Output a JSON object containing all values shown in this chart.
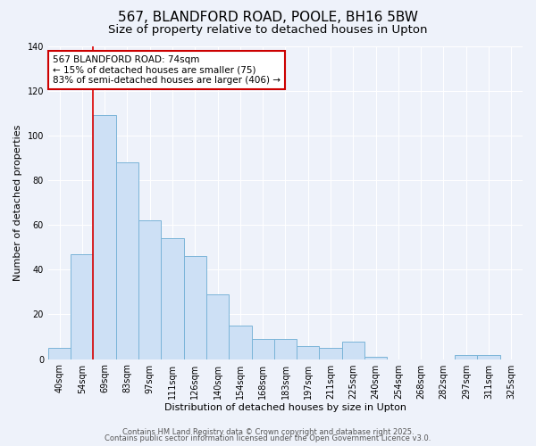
{
  "title": "567, BLANDFORD ROAD, POOLE, BH16 5BW",
  "subtitle": "Size of property relative to detached houses in Upton",
  "xlabel": "Distribution of detached houses by size in Upton",
  "ylabel": "Number of detached properties",
  "bar_labels": [
    "40sqm",
    "54sqm",
    "69sqm",
    "83sqm",
    "97sqm",
    "111sqm",
    "126sqm",
    "140sqm",
    "154sqm",
    "168sqm",
    "183sqm",
    "197sqm",
    "211sqm",
    "225sqm",
    "240sqm",
    "254sqm",
    "268sqm",
    "282sqm",
    "297sqm",
    "311sqm",
    "325sqm"
  ],
  "bar_values": [
    5,
    47,
    109,
    88,
    62,
    54,
    46,
    29,
    15,
    9,
    9,
    6,
    5,
    8,
    1,
    0,
    0,
    0,
    2,
    2,
    0
  ],
  "bar_color": "#cde0f5",
  "bar_edgecolor": "#7ab4d8",
  "vline_color": "#dd0000",
  "annotation_text": "567 BLANDFORD ROAD: 74sqm\n← 15% of detached houses are smaller (75)\n83% of semi-detached houses are larger (406) →",
  "annotation_box_color": "#ffffff",
  "annotation_box_edgecolor": "#cc0000",
  "ylim": [
    0,
    140
  ],
  "yticks": [
    0,
    20,
    40,
    60,
    80,
    100,
    120,
    140
  ],
  "footer_line1": "Contains HM Land Registry data © Crown copyright and database right 2025.",
  "footer_line2": "Contains public sector information licensed under the Open Government Licence v3.0.",
  "background_color": "#eef2fa",
  "title_fontsize": 11,
  "subtitle_fontsize": 9.5,
  "axis_label_fontsize": 8,
  "tick_fontsize": 7,
  "footer_fontsize": 6
}
